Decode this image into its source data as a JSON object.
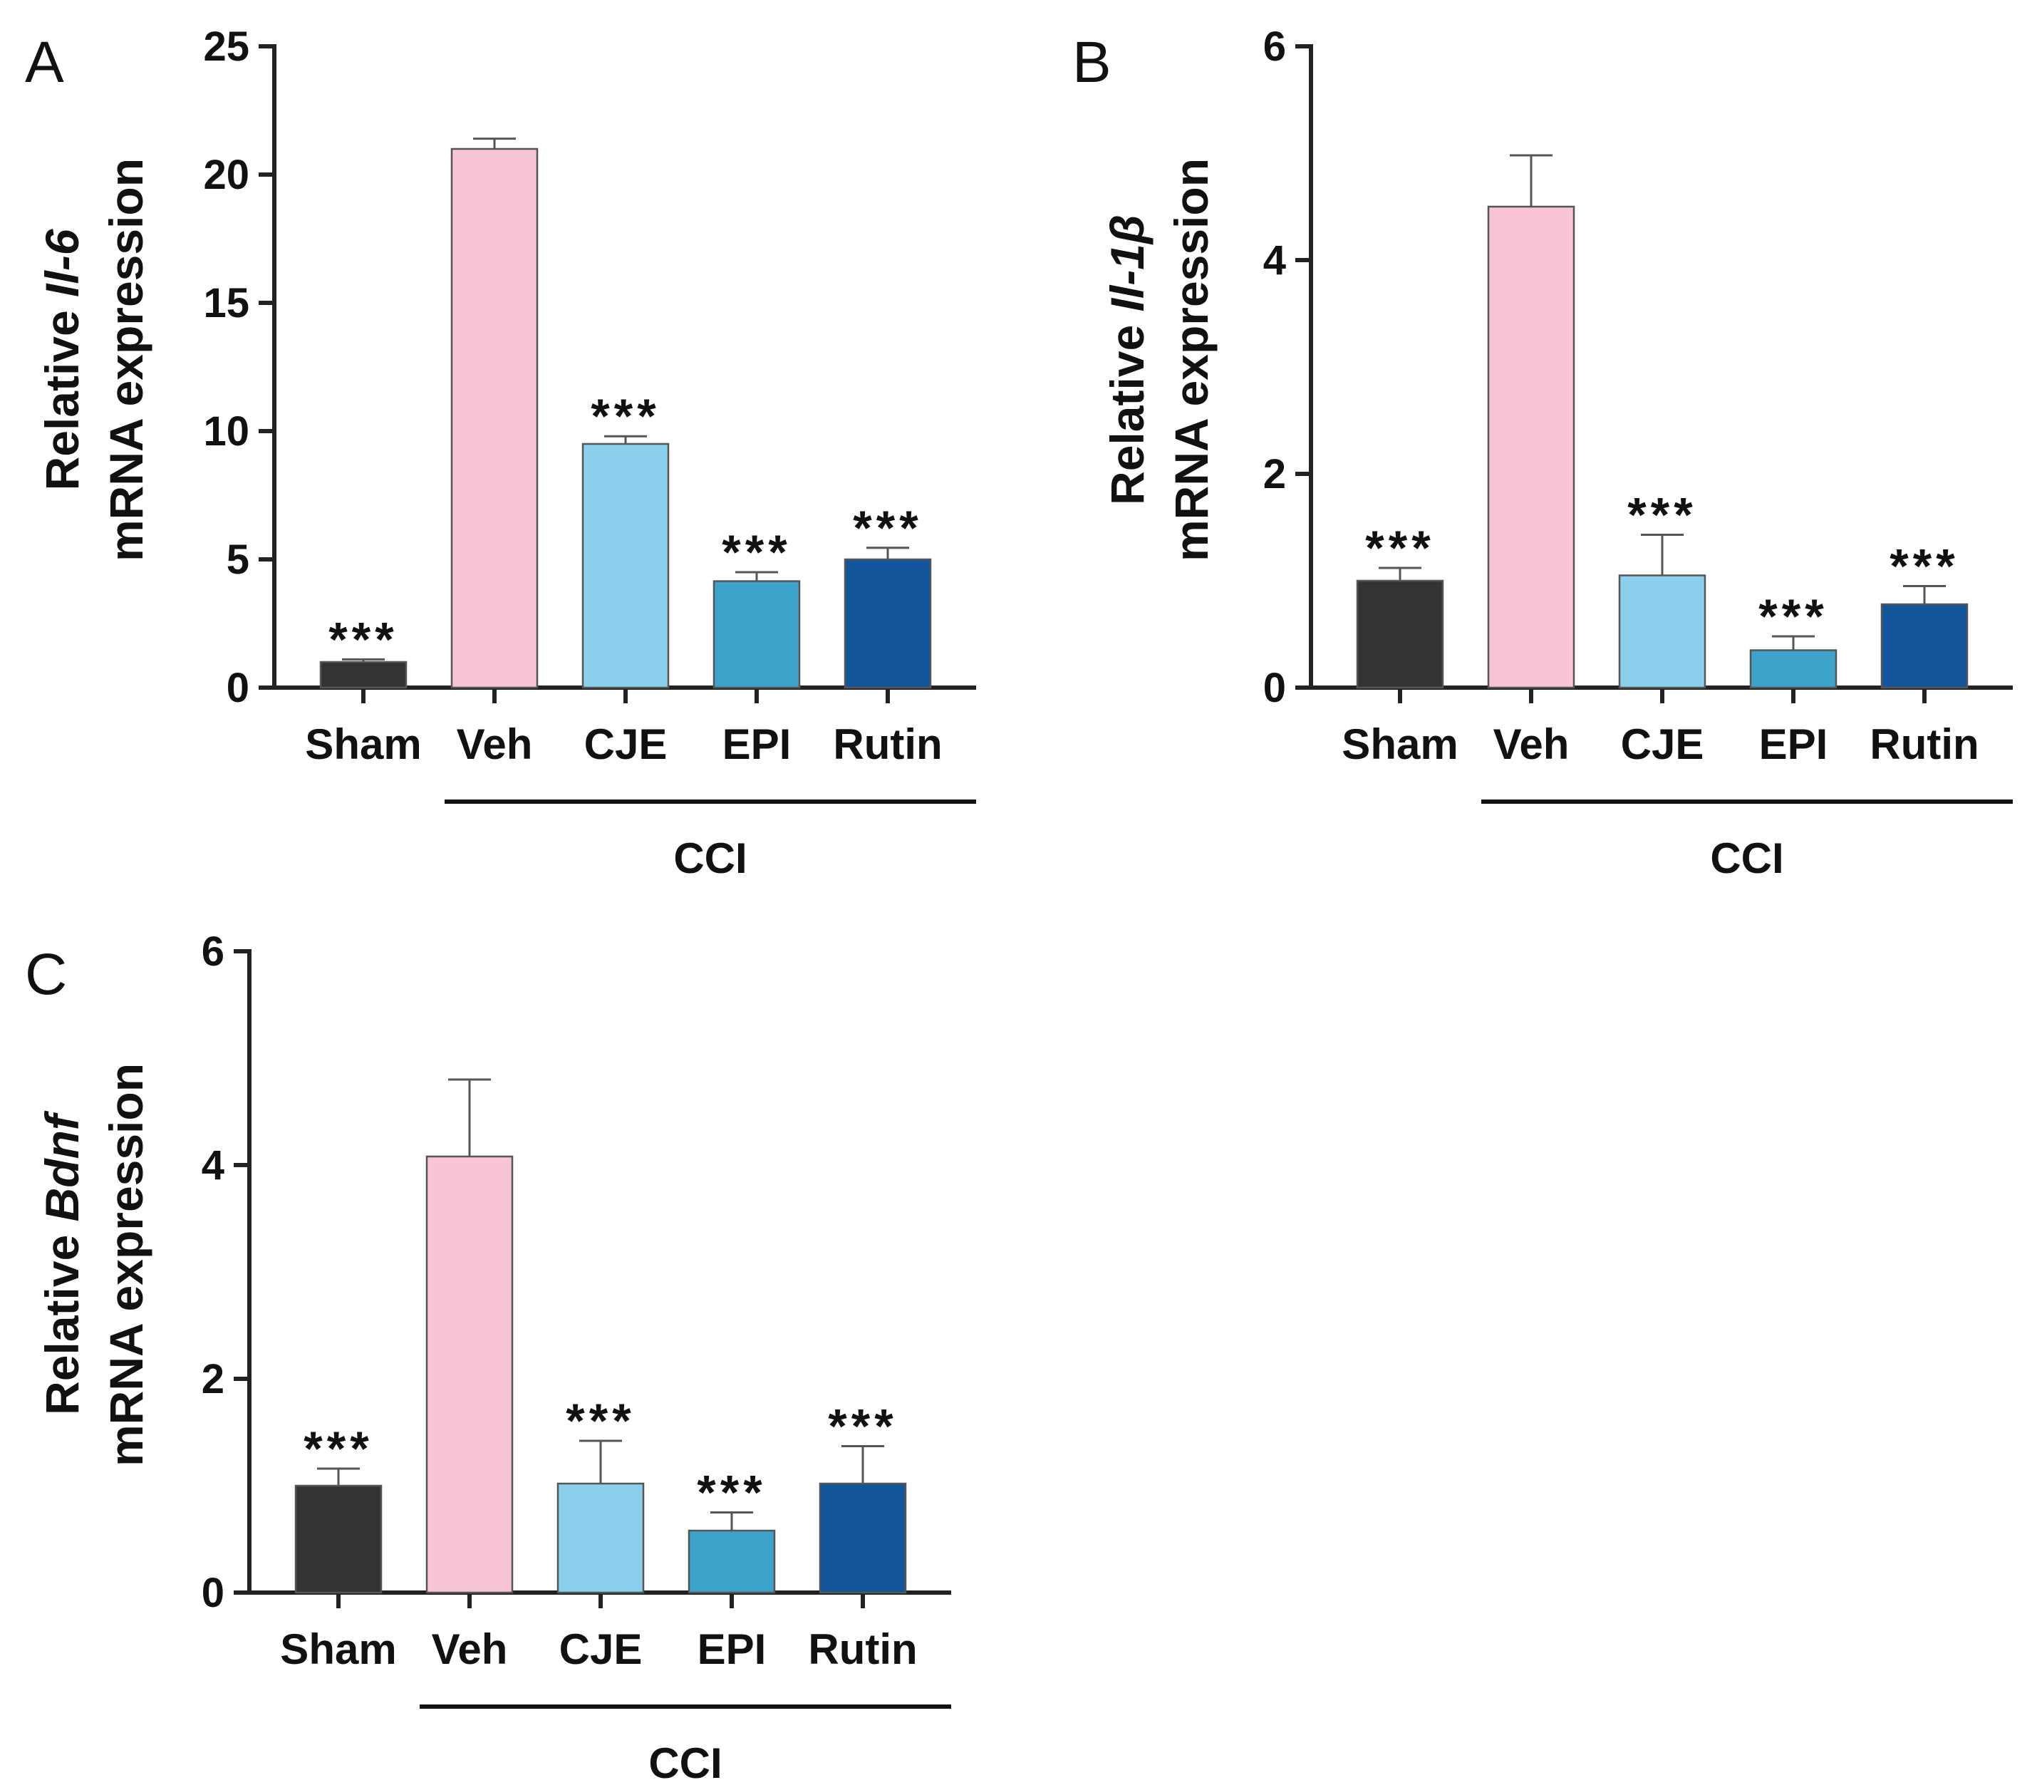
{
  "chart_data": [
    {
      "panel": "A",
      "type": "bar",
      "gene": "Il-6",
      "ylabel_prefix": "Relative",
      "ylabel_line2": "mRNA expression",
      "ylim": [
        0,
        25
      ],
      "yticks": [
        0,
        5,
        10,
        15,
        20,
        25
      ],
      "categories": [
        "Sham",
        "Veh",
        "CJE",
        "EPI",
        "Rutin"
      ],
      "values": [
        1.0,
        21.0,
        9.5,
        4.15,
        5.0
      ],
      "errors": [
        0.1,
        0.4,
        0.3,
        0.35,
        0.45
      ],
      "significance": [
        "***",
        "",
        "***",
        "***",
        "***"
      ],
      "colors": [
        "#333333",
        "#f7c5d7",
        "#8ad0ec",
        "#3ea3cb",
        "#13559b"
      ],
      "group_label": "CCI"
    },
    {
      "panel": "B",
      "type": "bar",
      "gene": "Il-1β",
      "ylabel_prefix": "Relative",
      "ylabel_line2": "mRNA expression",
      "ylim": [
        0,
        6
      ],
      "yticks": [
        0,
        2,
        4,
        6
      ],
      "categories": [
        "Sham",
        "Veh",
        "CJE",
        "EPI",
        "Rutin"
      ],
      "values": [
        1.0,
        4.5,
        1.05,
        0.35,
        0.78
      ],
      "errors": [
        0.12,
        0.48,
        0.38,
        0.13,
        0.17
      ],
      "significance": [
        "***",
        "",
        "***",
        "***",
        "***"
      ],
      "colors": [
        "#333333",
        "#f7c5d7",
        "#8ad0ec",
        "#3ea3cb",
        "#13559b"
      ],
      "group_label": "CCI"
    },
    {
      "panel": "C",
      "type": "bar",
      "gene": "Bdnf",
      "ylabel_prefix": "Relative",
      "ylabel_line2": "mRNA expression",
      "ylim": [
        0,
        6
      ],
      "yticks": [
        0,
        2,
        4,
        6
      ],
      "categories": [
        "Sham",
        "Veh",
        "CJE",
        "EPI",
        "Rutin"
      ],
      "values": [
        1.0,
        4.08,
        1.02,
        0.58,
        1.02
      ],
      "errors": [
        0.16,
        0.72,
        0.4,
        0.17,
        0.35
      ],
      "significance": [
        "***",
        "",
        "***",
        "***",
        "***"
      ],
      "colors": [
        "#333333",
        "#f7c5d7",
        "#8ad0ec",
        "#3ea3cb",
        "#13559b"
      ],
      "group_label": "CCI"
    }
  ]
}
